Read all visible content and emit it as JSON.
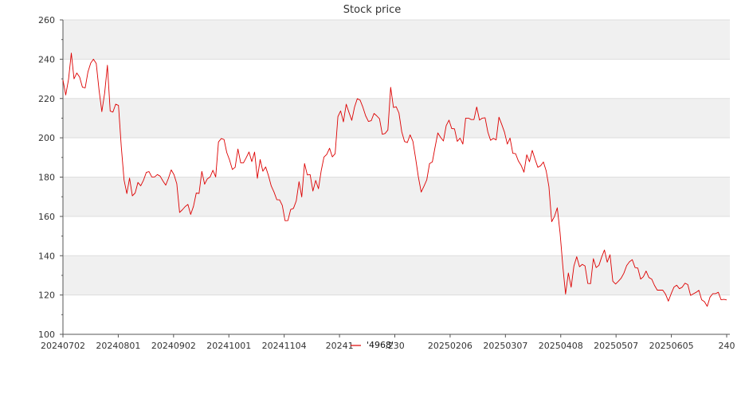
{
  "chart_data": {
    "type": "line",
    "title": "Stock price",
    "xlabel": "",
    "ylabel": "",
    "ylim": [
      100,
      260
    ],
    "y_ticks": [
      100,
      120,
      140,
      160,
      180,
      200,
      220,
      240,
      260
    ],
    "x_tick_labels": [
      "20240702",
      "20240801",
      "20240902",
      "20241001",
      "20241104",
      "20241",
      ".230",
      "20250206",
      "20250307",
      "20250408",
      "20250507",
      "20250605",
      "240"
    ],
    "grid": "horizontal bands",
    "legend": "bottom-center",
    "colors": {
      "line": "#dd0000",
      "band": "#f0f0f0",
      "grid": "#dddddd",
      "axis": "#555555"
    },
    "series": [
      {
        "name": "'4968'",
        "values": [
          229.4,
          221.8,
          229.7,
          243.1,
          230.0,
          233.0,
          230.9,
          225.8,
          225.4,
          233.6,
          238.1,
          240.0,
          237.8,
          224.3,
          213.3,
          222.6,
          236.9,
          213.6,
          213.1,
          217.1,
          216.5,
          195.6,
          178.5,
          171.6,
          179.5,
          170.5,
          171.9,
          177.3,
          175.6,
          178.4,
          182.4,
          182.8,
          180.1,
          180.1,
          181.3,
          180.5,
          178.0,
          175.9,
          179.4,
          183.7,
          181.2,
          176.6,
          162.0,
          163.4,
          165.0,
          166.1,
          161.0,
          165.1,
          171.9,
          171.7,
          182.9,
          176.4,
          179.1,
          180.1,
          183.5,
          180.1,
          197.9,
          199.6,
          199.1,
          192.5,
          188.7,
          183.9,
          185.0,
          194.3,
          187.2,
          187.2,
          189.9,
          192.8,
          187.9,
          192.7,
          179.4,
          188.9,
          183.0,
          185.2,
          180.8,
          175.5,
          172.4,
          168.5,
          168.4,
          165.6,
          157.8,
          157.9,
          163.5,
          164.1,
          167.9,
          177.7,
          169.9,
          186.9,
          181.1,
          181.3,
          172.9,
          178.3,
          174.1,
          183.2,
          190.2,
          191.6,
          194.7,
          190.3,
          191.9,
          210.8,
          213.7,
          208.1,
          217.1,
          212.9,
          208.9,
          215.7,
          219.9,
          219.2,
          215.6,
          211.2,
          208.3,
          208.7,
          212.4,
          211.2,
          209.7,
          201.8,
          202.2,
          204.0,
          225.7,
          215.4,
          215.8,
          212.6,
          203.1,
          198.1,
          197.6,
          201.5,
          198.2,
          189.6,
          180.0,
          172.4,
          175.4,
          178.6,
          186.9,
          187.7,
          195.2,
          202.5,
          200.2,
          198.4,
          206.2,
          209.0,
          204.7,
          204.6,
          198.2,
          199.8,
          196.8,
          210.0,
          210.0,
          209.3,
          209.3,
          215.7,
          209.0,
          210.0,
          210.2,
          202.9,
          198.7,
          199.7,
          198.9,
          210.5,
          206.8,
          202.8,
          196.8,
          199.9,
          192.1,
          191.9,
          188.2,
          185.9,
          182.5,
          191.4,
          187.8,
          193.6,
          189.1,
          185.0,
          185.8,
          187.7,
          183.1,
          175.2,
          157.3,
          160.0,
          164.4,
          151.6,
          134.5,
          120.5,
          131.2,
          124.0,
          134.8,
          139.5,
          134.4,
          135.6,
          134.8,
          125.9,
          125.8,
          138.5,
          134.0,
          135.1,
          139.4,
          142.9,
          136.7,
          140.5,
          127.0,
          125.6,
          127.0,
          128.6,
          131.1,
          135.0,
          136.9,
          138.0,
          134.0,
          133.7,
          128.1,
          129.3,
          132.2,
          128.9,
          128.1,
          124.9,
          122.5,
          122.5,
          122.5,
          120.4,
          116.9,
          120.6,
          124.0,
          125.0,
          123.2,
          124.0,
          126.0,
          125.3,
          119.8,
          120.6,
          121.4,
          122.4,
          117.6,
          116.6,
          114.2,
          118.9,
          120.7,
          120.7,
          121.4,
          117.6,
          117.8,
          117.5
        ]
      }
    ]
  }
}
